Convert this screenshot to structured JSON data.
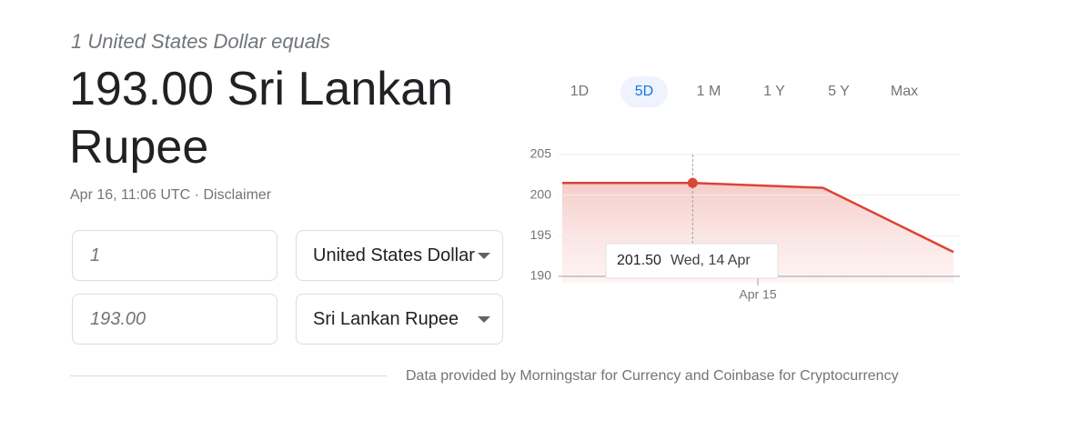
{
  "header": {
    "subtitle": "1 United States Dollar equals",
    "title_lines": [
      "193.00 Sri Lankan",
      "Rupee"
    ],
    "timestamp": "Apr 16, 11:06 UTC",
    "separator": "·",
    "disclaimer": "Disclaimer"
  },
  "converter": [
    {
      "amount": "1",
      "currency": "United States Dollar"
    },
    {
      "amount": "193.00",
      "currency": "Sri Lankan Rupee"
    }
  ],
  "ranges": [
    "1D",
    "5D",
    "1 M",
    "1 Y",
    "5 Y",
    "Max"
  ],
  "selected_range": 1,
  "chart_data": {
    "type": "line",
    "x": [
      0,
      1,
      2,
      3
    ],
    "values": [
      201.5,
      201.5,
      200.9,
      193.0
    ],
    "color": "#db4437",
    "xlim": [
      0,
      3
    ],
    "xticks": [
      {
        "value": 1.5,
        "label": "Apr 15"
      }
    ],
    "ylim": [
      190,
      205
    ],
    "yticks": [
      190,
      195,
      200,
      205
    ],
    "grid": true,
    "tooltip": {
      "point": 1,
      "label": "201.50",
      "date": "Wed, 14 Apr"
    }
  },
  "footer": "Data provided by Morningstar for Currency and Coinbase for Cryptocurrency"
}
